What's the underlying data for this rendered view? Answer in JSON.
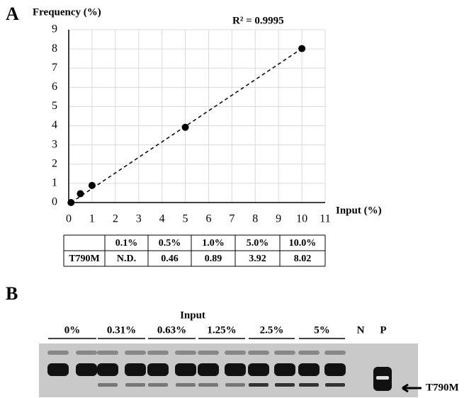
{
  "panels": [
    "A",
    "B"
  ],
  "chart_data": {
    "type": "scatter",
    "y_label": "Frequency (%)",
    "x_label": "Input (%)",
    "annotation": "R² = 0.9995",
    "x": [
      0.1,
      0.5,
      1,
      5,
      10
    ],
    "values": [
      0,
      0.46,
      0.89,
      3.92,
      8.02
    ],
    "color": "#000000",
    "xlim": [
      0,
      11
    ],
    "ylim": [
      0,
      9
    ],
    "xticks": [
      0,
      1,
      2,
      3,
      4,
      5,
      6,
      7,
      8,
      9,
      10,
      11
    ],
    "yticks": [
      0,
      1,
      2,
      3,
      4,
      5,
      6,
      7,
      8,
      9
    ],
    "grid": true,
    "trendline": true
  },
  "table": {
    "header": [
      "0.1%",
      "0.5%",
      "1.0%",
      "5.0%",
      "10.0%"
    ],
    "rows": [
      [
        "T790M",
        "N.D.",
        "0.46",
        "0.89",
        "3.92",
        "8.02"
      ]
    ]
  },
  "gel": {
    "title": "Input",
    "groups": [
      "0%",
      "0.31%",
      "0.63%",
      "1.25%",
      "2.5%",
      "5%"
    ],
    "controls": [
      "N",
      "P"
    ],
    "arrow_label": "T790M"
  }
}
